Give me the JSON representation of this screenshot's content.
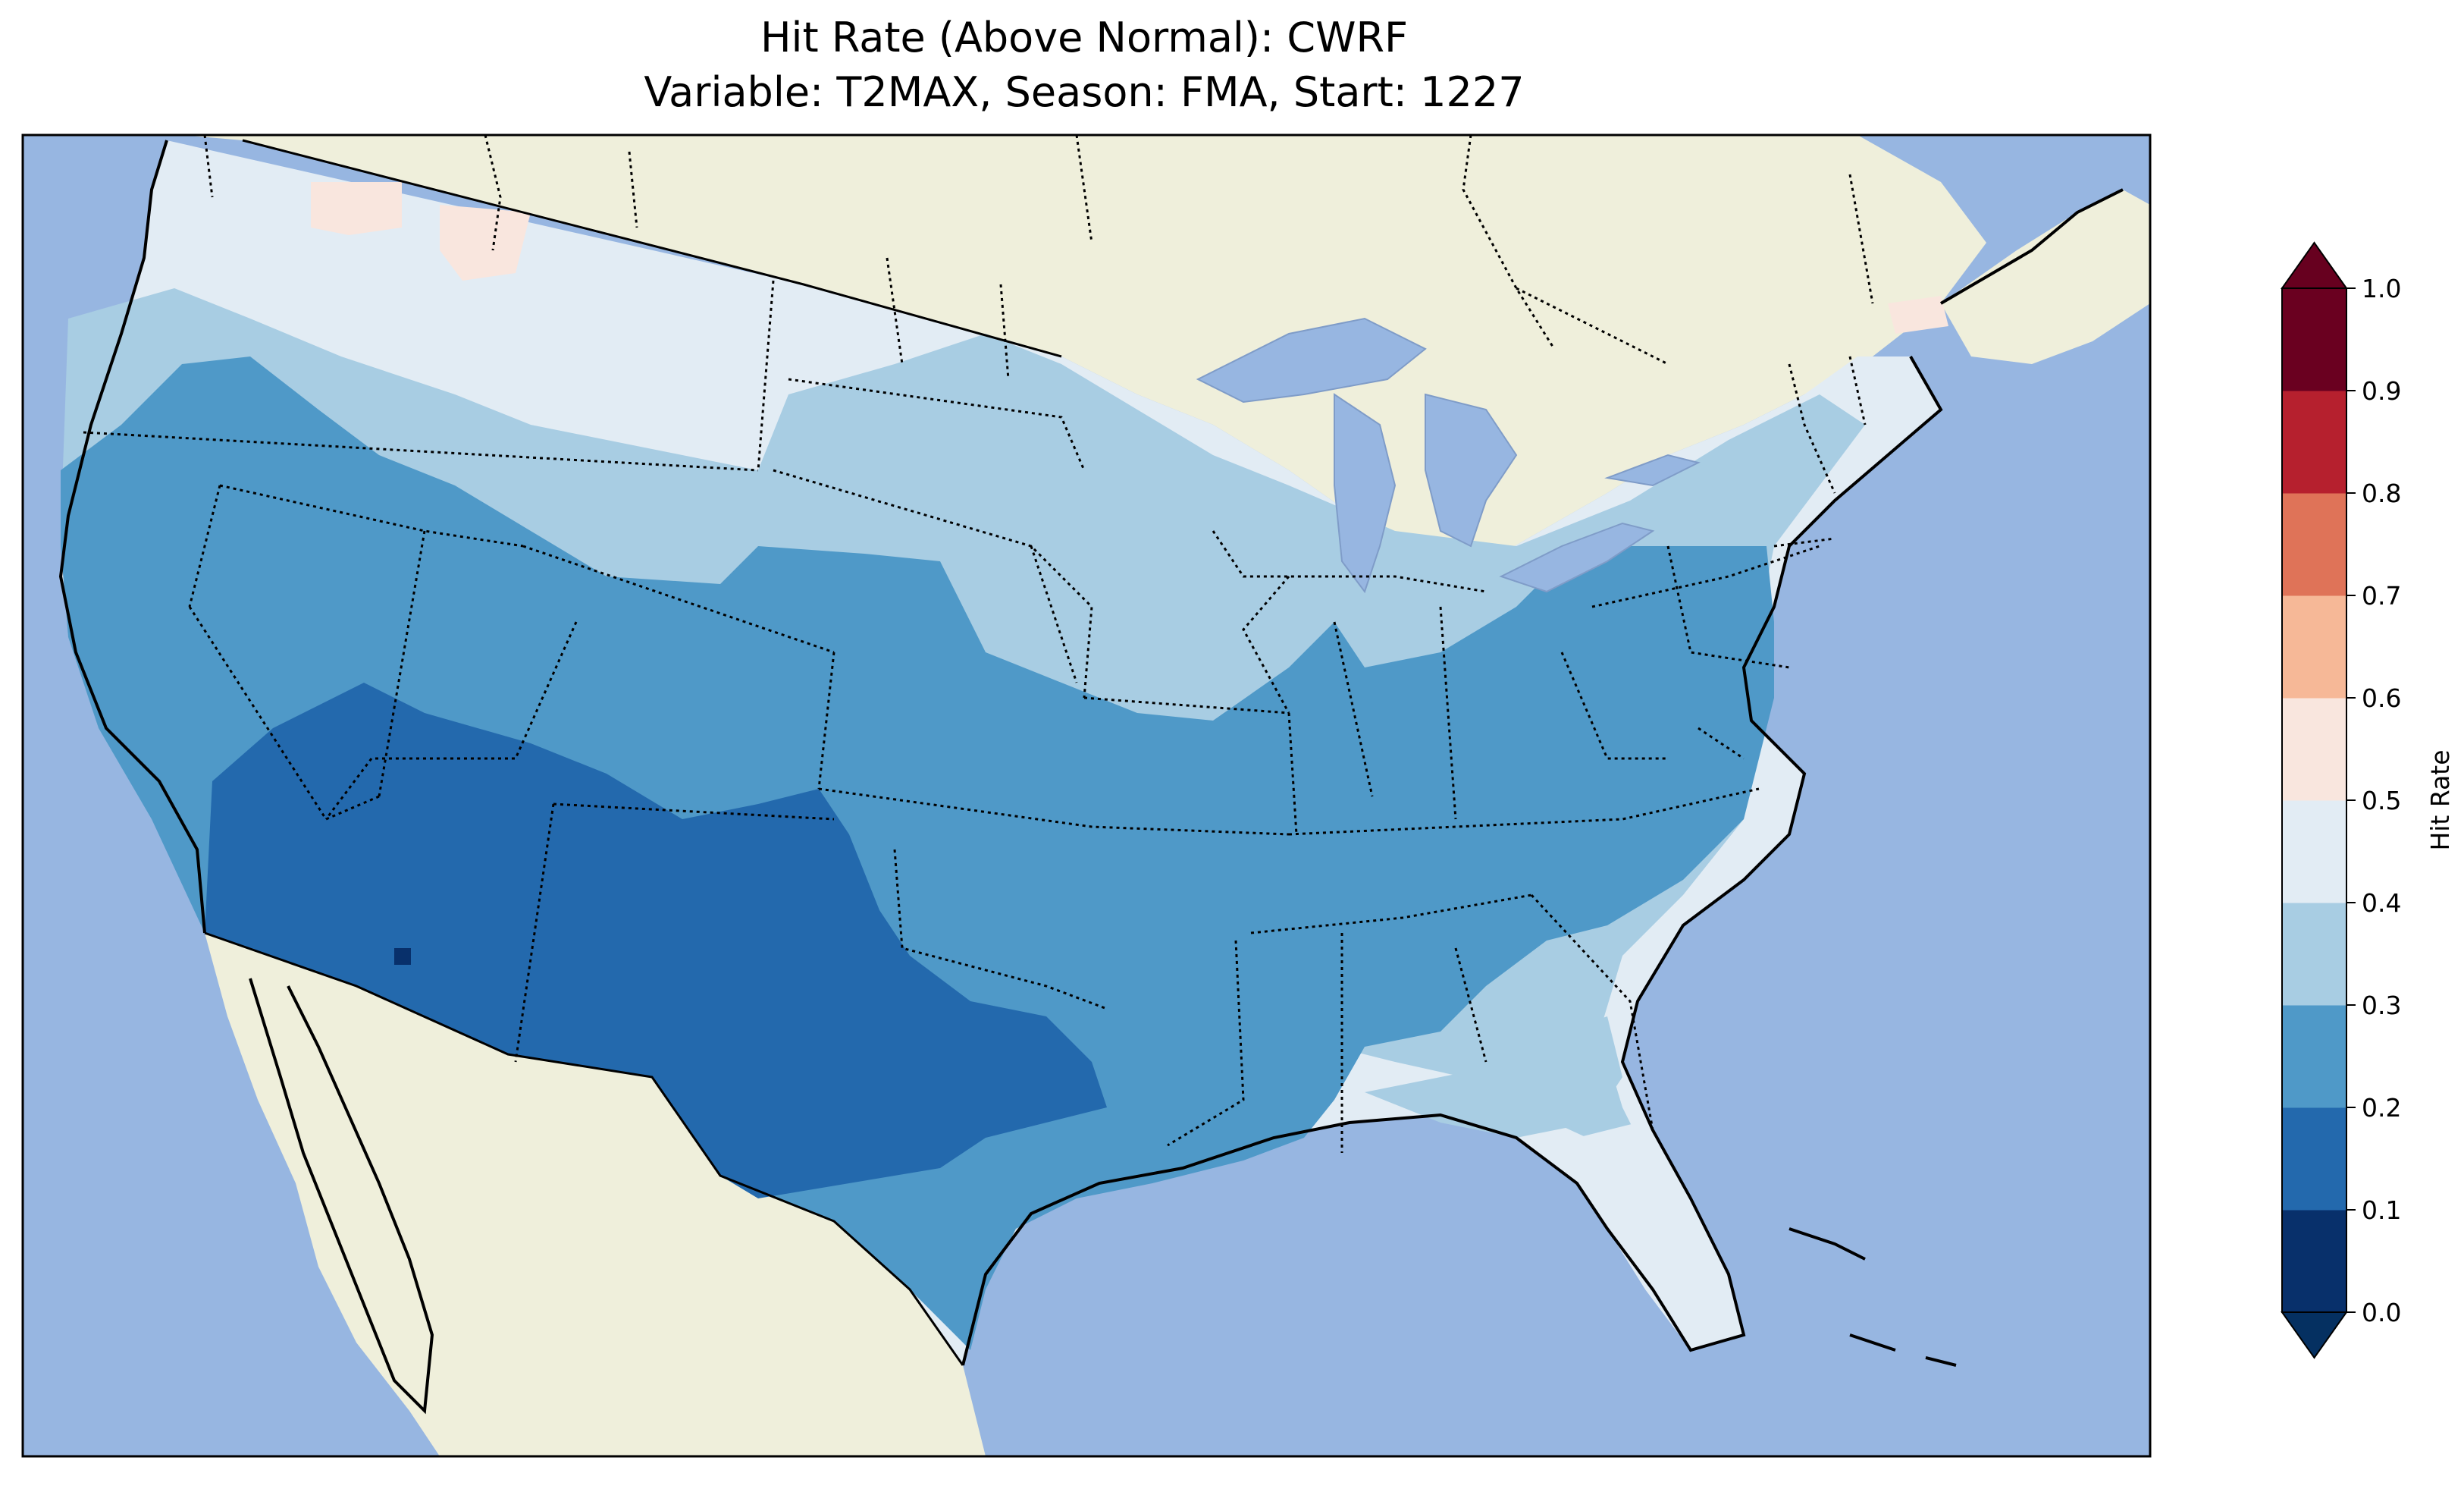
{
  "title_line1": "Hit Rate (Above Normal): CWRF",
  "title_line2": "Variable: T2MAX, Season: FMA, Start: 1227",
  "map_colors": {
    "ocean": "#97b6e1",
    "land": "#efefdb",
    "coast": "#000000"
  },
  "colorbar": {
    "label": "Hit Rate",
    "ticks": [
      "0.0",
      "0.1",
      "0.2",
      "0.3",
      "0.4",
      "0.5",
      "0.6",
      "0.7",
      "0.8",
      "0.9",
      "1.0"
    ],
    "colors": [
      "#053061",
      "#2166ac",
      "#4393c3",
      "#92c5de",
      "#d1e5f0",
      "#f7f7f7",
      "#fddbc7",
      "#f4a582",
      "#d6604d",
      "#b2182b",
      "#67001f"
    ]
  },
  "legend_colors": [
    "#08306b",
    "#2369ad",
    "#4f99c8",
    "#a8cde3",
    "#e2ecf4",
    "#f9e6de",
    "#f6b897",
    "#df7358",
    "#b6202e",
    "#6a0020"
  ]
}
